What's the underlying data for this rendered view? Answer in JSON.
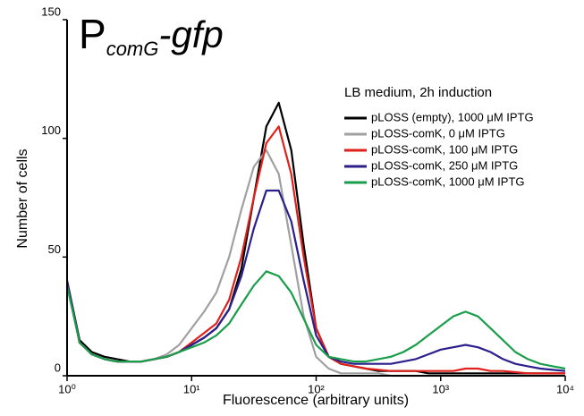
{
  "chart_data": {
    "type": "line",
    "title_parts": [
      "P",
      "comG",
      "-gfp"
    ],
    "legend_title": "LB medium, 2h induction",
    "xlabel": "Fluorescence (arbitrary units)",
    "ylabel": "Number of cells",
    "log_x": true,
    "x": [
      1,
      1.26,
      1.58,
      2,
      2.51,
      3.16,
      3.98,
      5.01,
      6.31,
      7.94,
      10,
      12.6,
      15.8,
      20,
      25.1,
      31.6,
      39.8,
      50.1,
      63.1,
      79.4,
      100,
      126,
      158,
      200,
      251,
      316,
      398,
      501,
      631,
      794,
      1000,
      1259,
      1585,
      1995,
      2512,
      3162,
      3981,
      5012,
      6310,
      7943,
      10000
    ],
    "series": [
      {
        "name": "pLOSS (empty), 1000 μM IPTG",
        "color": "#000000",
        "values": [
          40,
          15,
          10,
          8,
          7,
          6,
          6,
          7,
          8,
          10,
          13,
          16,
          20,
          28,
          45,
          75,
          105,
          115,
          95,
          55,
          20,
          8,
          5,
          4,
          3,
          2,
          2,
          2,
          2,
          1,
          1,
          1,
          1,
          1,
          1,
          1,
          1,
          1,
          1,
          1,
          1
        ]
      },
      {
        "name": "pLOSS-comK, 0 μM IPTG",
        "color": "#a0a0a0",
        "values": [
          38,
          14,
          9,
          7,
          6,
          6,
          6,
          7,
          9,
          13,
          20,
          27,
          35,
          50,
          70,
          88,
          95,
          85,
          55,
          25,
          8,
          3,
          1,
          1,
          1,
          1,
          0,
          0,
          0,
          0,
          0,
          0,
          0,
          0,
          0,
          0,
          0,
          0,
          0,
          0,
          0
        ]
      },
      {
        "name": "pLOSS-comK, 100 μM IPTG",
        "color": "#e0201b",
        "values": [
          40,
          14,
          9,
          7,
          6,
          6,
          6,
          7,
          8,
          10,
          14,
          18,
          22,
          32,
          50,
          75,
          98,
          105,
          85,
          50,
          20,
          8,
          5,
          4,
          3,
          2.5,
          2,
          2,
          2,
          2,
          2,
          2,
          3,
          3,
          2,
          2,
          1.5,
          1,
          1,
          1,
          1
        ]
      },
      {
        "name": "pLOSS-comK, 250 μM IPTG",
        "color": "#2b1f8c",
        "values": [
          40,
          14,
          9,
          7,
          6,
          6,
          6,
          7,
          8,
          10,
          13,
          16,
          20,
          28,
          42,
          62,
          78,
          78,
          65,
          40,
          17,
          8,
          6,
          5,
          5,
          5,
          5,
          6,
          7,
          9,
          11,
          12,
          13,
          12,
          10,
          7,
          5,
          4,
          3,
          2.5,
          2
        ]
      },
      {
        "name": "pLOSS-comK, 1000 μM IPTG",
        "color": "#1a9e4a",
        "values": [
          38,
          14,
          9,
          7,
          6,
          6,
          6,
          7,
          8,
          10,
          12,
          14,
          17,
          22,
          30,
          38,
          44,
          42,
          35,
          24,
          13,
          8,
          7,
          6,
          6,
          7,
          8,
          10,
          13,
          17,
          21,
          25,
          27,
          25,
          20,
          15,
          10,
          7,
          5,
          4,
          3
        ]
      }
    ],
    "xlim": [
      1,
      10000
    ],
    "xticks": [
      {
        "value": 1,
        "label": "10⁰"
      },
      {
        "value": 10,
        "label": "10¹"
      },
      {
        "value": 100,
        "label": "10²"
      },
      {
        "value": 1000,
        "label": "10³"
      },
      {
        "value": 10000,
        "label": "10⁴"
      }
    ],
    "ylim": [
      0,
      150
    ],
    "yticks": [
      0,
      50,
      100,
      150
    ]
  }
}
